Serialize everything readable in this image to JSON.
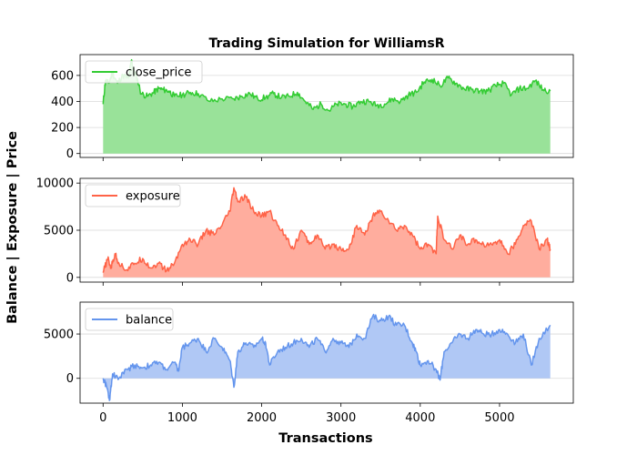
{
  "chart_data": {
    "type": "area",
    "title": "Trading Simulation for WilliamsR",
    "xlabel": "Transactions",
    "ylabel": "Balance | Exposure | Price",
    "xlim": [
      -290,
      5930
    ],
    "xticks": [
      0,
      1000,
      2000,
      3000,
      4000,
      5000
    ],
    "grid": "horizontal",
    "legend_position": "upper-left",
    "panels": [
      {
        "name": "close_price",
        "color": "#33cc33",
        "fill": "#99e299",
        "ylim": [
          -30,
          760
        ],
        "yticks": [
          0,
          200,
          400,
          600
        ],
        "x": [
          0,
          30,
          70,
          120,
          180,
          250,
          320,
          360,
          380,
          420,
          480,
          560,
          640,
          700,
          760,
          830,
          900,
          1000,
          1100,
          1200,
          1350,
          1500,
          1650,
          1750,
          1850,
          1950,
          2050,
          2150,
          2250,
          2350,
          2450,
          2550,
          2650,
          2750,
          2850,
          2950,
          3050,
          3150,
          3250,
          3350,
          3450,
          3550,
          3650,
          3750,
          3850,
          3950,
          4050,
          4150,
          4250,
          4350,
          4450,
          4550,
          4650,
          4750,
          4850,
          4950,
          5050,
          5150,
          5250,
          5350,
          5450,
          5550,
          5640
        ],
        "y": [
          380,
          560,
          540,
          620,
          540,
          600,
          580,
          720,
          640,
          600,
          460,
          440,
          470,
          500,
          490,
          480,
          440,
          450,
          470,
          460,
          400,
          420,
          420,
          440,
          460,
          420,
          430,
          460,
          430,
          440,
          470,
          400,
          340,
          380,
          330,
          380,
          380,
          360,
          400,
          400,
          370,
          380,
          420,
          400,
          450,
          470,
          550,
          570,
          520,
          580,
          540,
          500,
          490,
          480,
          480,
          520,
          540,
          450,
          500,
          500,
          560,
          490,
          480
        ]
      },
      {
        "name": "exposure",
        "color": "#ff6347",
        "fill": "#ffad9e",
        "ylim": [
          -500,
          10500
        ],
        "yticks": [
          0,
          5000,
          10000
        ],
        "x": [
          0,
          60,
          100,
          150,
          200,
          300,
          400,
          500,
          600,
          700,
          800,
          900,
          1000,
          1100,
          1200,
          1300,
          1400,
          1500,
          1600,
          1650,
          1700,
          1800,
          1900,
          2000,
          2100,
          2200,
          2300,
          2400,
          2500,
          2600,
          2700,
          2800,
          2900,
          3000,
          3100,
          3200,
          3300,
          3400,
          3500,
          3600,
          3700,
          3800,
          3900,
          4000,
          4100,
          4200,
          4220,
          4300,
          4400,
          4500,
          4600,
          4700,
          4800,
          4900,
          5000,
          5100,
          5200,
          5300,
          5400,
          5500,
          5600,
          5640
        ],
        "y": [
          500,
          2000,
          1000,
          2500,
          1500,
          800,
          1500,
          2000,
          1000,
          1500,
          700,
          1500,
          3500,
          4000,
          3500,
          5000,
          4500,
          5500,
          7000,
          9500,
          8000,
          8500,
          7000,
          6500,
          7000,
          5500,
          4500,
          3000,
          5000,
          3500,
          4500,
          3000,
          3500,
          3000,
          3000,
          5500,
          4500,
          6500,
          7000,
          6000,
          5000,
          5500,
          4500,
          3000,
          3500,
          2500,
          6500,
          4000,
          3000,
          4500,
          3500,
          4000,
          3500,
          3500,
          4000,
          2500,
          3500,
          5500,
          6000,
          3000,
          4000,
          3000
        ]
      },
      {
        "name": "balance",
        "color": "#6495ed",
        "fill": "#b0c8f5",
        "ylim": [
          -2800,
          8600
        ],
        "yticks": [
          0,
          5000
        ],
        "x": [
          0,
          40,
          80,
          120,
          200,
          300,
          400,
          500,
          600,
          700,
          800,
          900,
          950,
          1000,
          1100,
          1200,
          1300,
          1400,
          1500,
          1600,
          1650,
          1700,
          1800,
          1900,
          2000,
          2050,
          2100,
          2200,
          2300,
          2400,
          2500,
          2600,
          2700,
          2800,
          2900,
          3000,
          3100,
          3200,
          3300,
          3400,
          3500,
          3600,
          3700,
          3800,
          3900,
          3950,
          4000,
          4100,
          4200,
          4250,
          4300,
          4400,
          4500,
          4600,
          4700,
          4800,
          4900,
          5000,
          5100,
          5200,
          5300,
          5400,
          5500,
          5640
        ],
        "y": [
          0,
          -800,
          -2500,
          500,
          0,
          1000,
          1500,
          1200,
          1500,
          1800,
          1000,
          1800,
          800,
          3500,
          4000,
          4500,
          3000,
          4500,
          3500,
          2000,
          -1000,
          3000,
          4000,
          3500,
          4500,
          4000,
          1500,
          3000,
          3500,
          4000,
          4500,
          3500,
          4500,
          3000,
          4500,
          4000,
          3500,
          5000,
          4500,
          7000,
          6500,
          7000,
          6000,
          6000,
          4000,
          3000,
          1500,
          2000,
          1000,
          -200,
          3000,
          4000,
          5000,
          4500,
          5500,
          5000,
          5000,
          5500,
          5000,
          4000,
          5000,
          1500,
          4500,
          6000
        ]
      }
    ]
  }
}
